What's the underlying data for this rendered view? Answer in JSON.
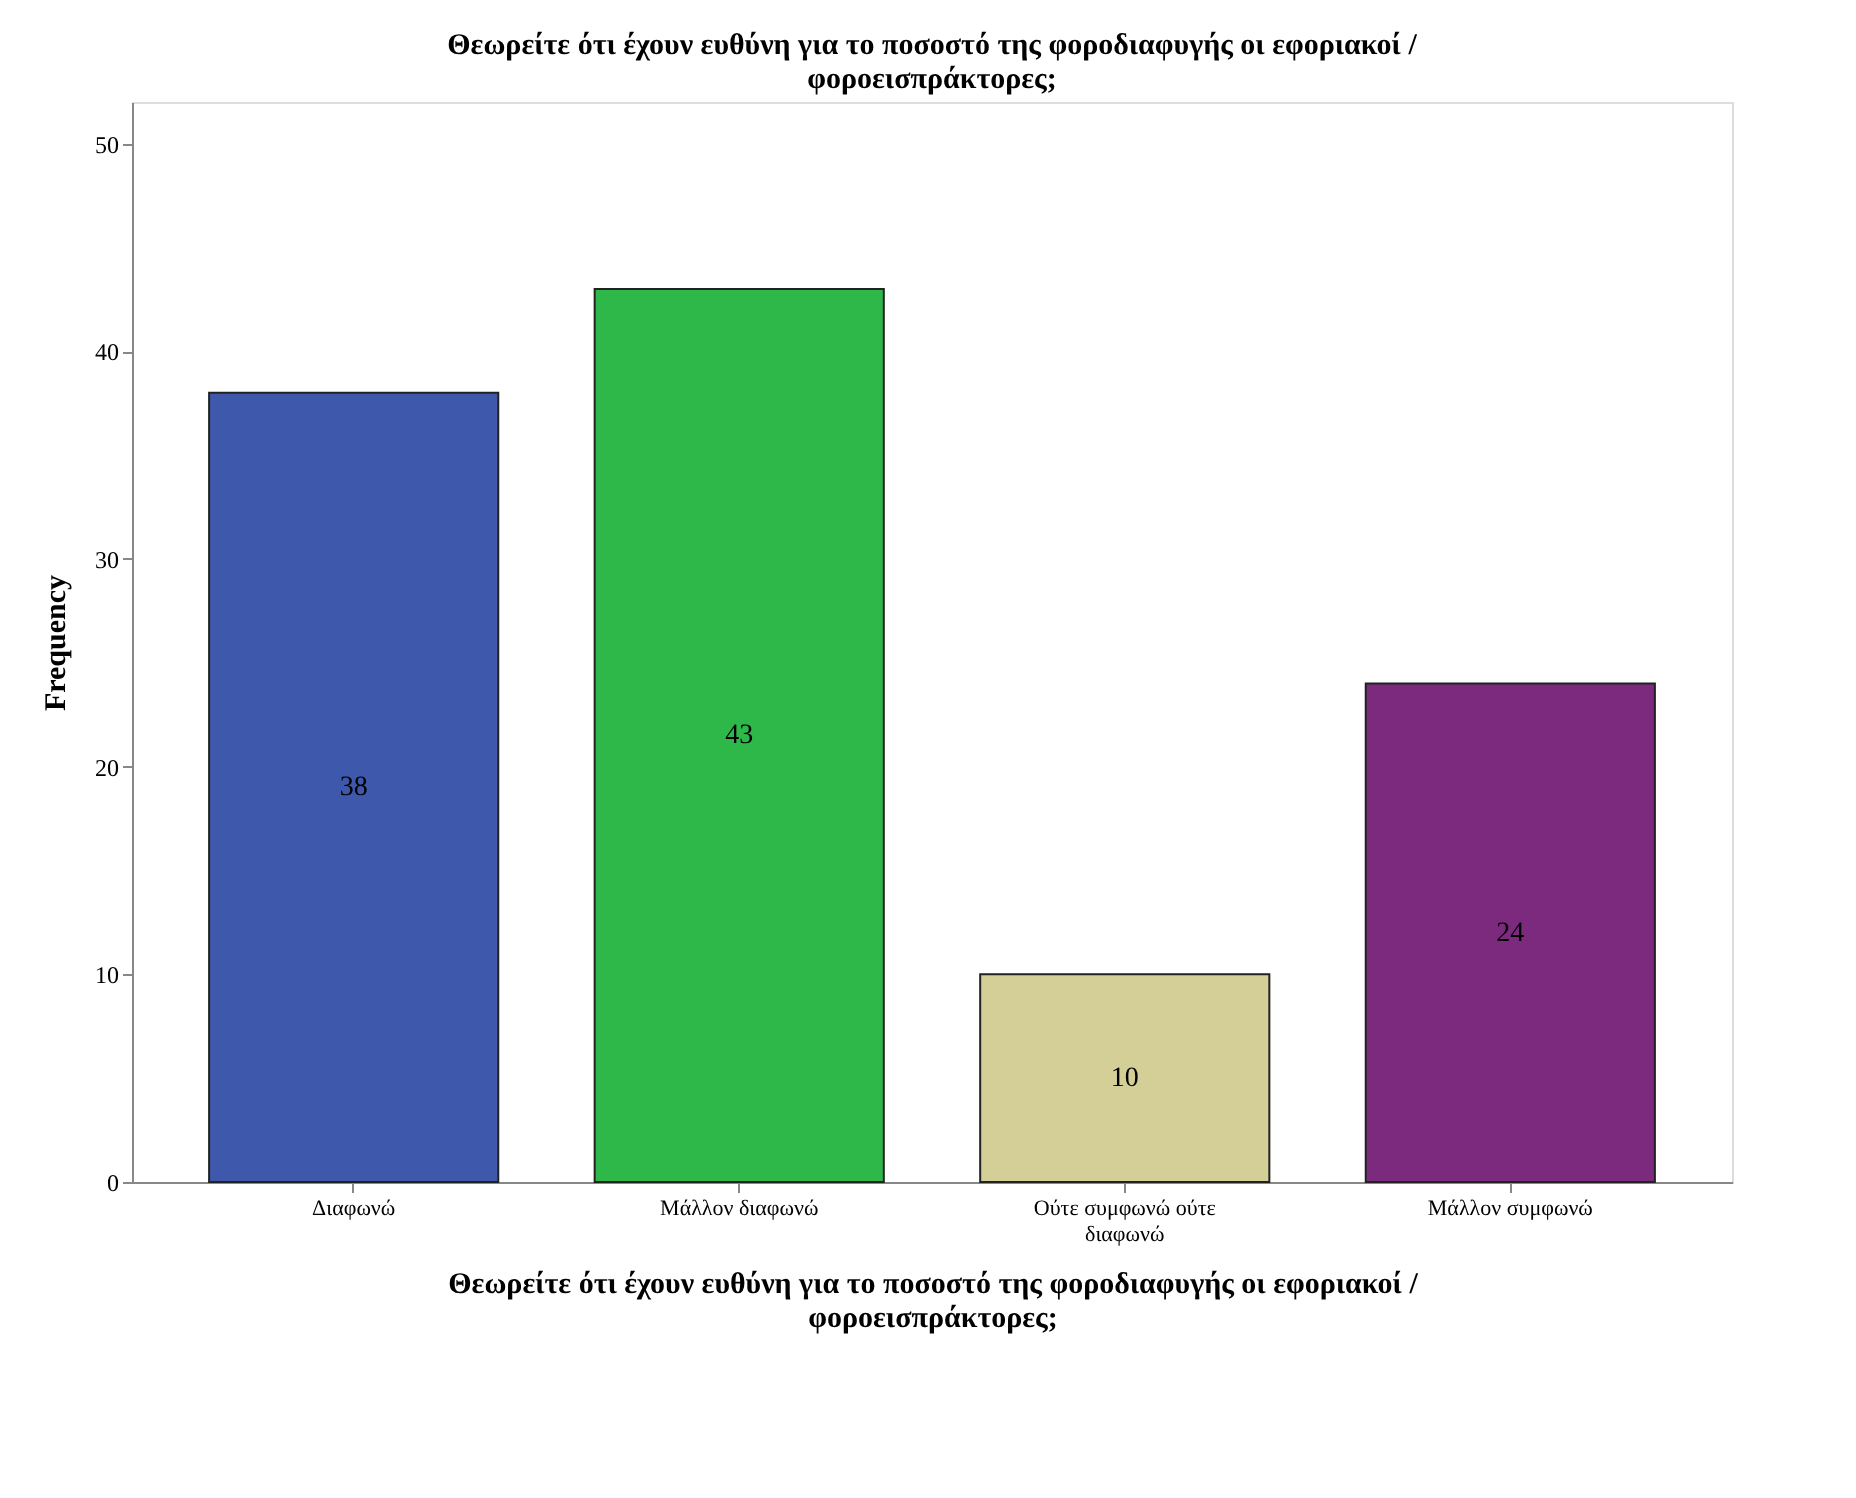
{
  "chart_data": {
    "type": "bar",
    "title": "Θεωρείτε ότι έχουν ευθύνη για το ποσοστό της φοροδιαφυγής οι εφοριακοί / φοροεισπράκτορες;",
    "xlabel": "Θεωρείτε ότι έχουν ευθύνη για το ποσοστό της φοροδιαφυγής οι εφοριακοί / φοροεισπράκτορες;",
    "ylabel": "Frequency",
    "categories": [
      "Διαφωνώ",
      "Μάλλον διαφωνώ",
      "Ούτε συμφωνώ ούτε διαφωνώ",
      "Μάλλον συμφωνώ"
    ],
    "values": [
      38,
      43,
      10,
      24
    ],
    "colors": [
      "#3e58ac",
      "#2fb84a",
      "#d4cf97",
      "#7b2a7e"
    ],
    "ylim": [
      0,
      52
    ],
    "yticks": [
      0,
      10,
      20,
      30,
      40,
      50
    ],
    "data_labels": true,
    "grid": false,
    "legend": false
  }
}
